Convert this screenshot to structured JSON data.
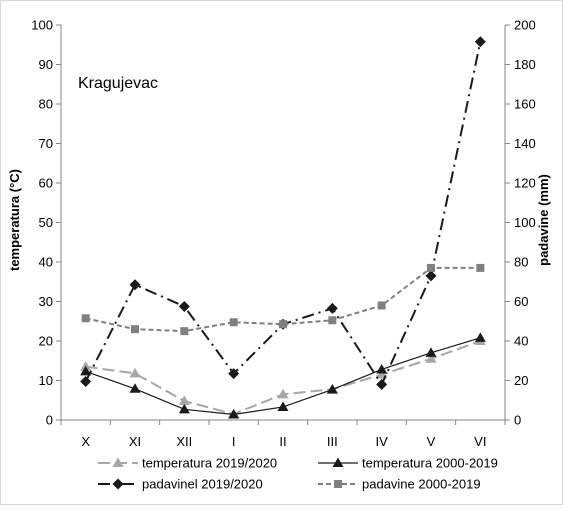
{
  "chart_data": {
    "type": "line",
    "annotation": "Kragujevac",
    "categories": [
      "X",
      "XI",
      "XII",
      "I",
      "II",
      "III",
      "IV",
      "V",
      "VI"
    ],
    "ylabel_left": "temperatura (°C)",
    "ylabel_right": "padavine (mm)",
    "ylim_left": [
      0,
      100
    ],
    "ylim_right": [
      0,
      200
    ],
    "yticks_left": [
      "0",
      "10",
      "20",
      "30",
      "40",
      "50",
      "60",
      "70",
      "80",
      "90",
      "100"
    ],
    "yticks_right": [
      "0",
      "20",
      "40",
      "60",
      "80",
      "100",
      "120",
      "140",
      "160",
      "180",
      "200"
    ],
    "grid": false,
    "legend_position": "bottom",
    "series": [
      {
        "name": "temperatura 2019/2020",
        "axis": "left",
        "color": "#a6a6a6",
        "dash": "long-dash",
        "marker": "triangle",
        "values": [
          13.5,
          11.8,
          4.8,
          1.5,
          6.5,
          7.8,
          11.5,
          15.5,
          20.0
        ]
      },
      {
        "name": "temperatura 2000-2019",
        "axis": "left",
        "color": "#1a1a1a",
        "dash": "solid",
        "marker": "triangle",
        "values": [
          12.3,
          7.9,
          2.7,
          1.4,
          3.3,
          7.7,
          12.8,
          17.0,
          20.8
        ]
      },
      {
        "name": "padavinel 2019/2020",
        "axis": "right",
        "color": "#1a1a1a",
        "dash": "dash-dot",
        "marker": "diamond",
        "values": [
          19.5,
          68.5,
          57.5,
          23.5,
          48.5,
          56.5,
          18.0,
          73.0,
          191.5
        ]
      },
      {
        "name": "padavine 2000-2019",
        "axis": "right",
        "color": "#808080",
        "dash": "short-dash",
        "marker": "square",
        "values": [
          51.5,
          46.0,
          45.0,
          49.5,
          48.5,
          50.5,
          58.0,
          77.0,
          77.0
        ]
      }
    ]
  }
}
